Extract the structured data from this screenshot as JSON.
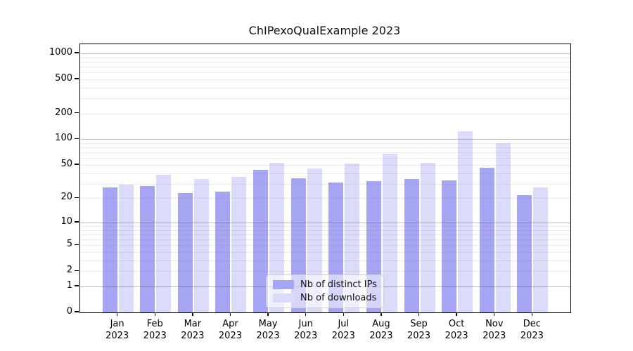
{
  "chart_data": {
    "type": "bar",
    "title": "ChIPexoQualExample 2023",
    "categories": [
      "Jan",
      "Feb",
      "Mar",
      "Apr",
      "May",
      "Jun",
      "Jul",
      "Aug",
      "Sep",
      "Oct",
      "Nov",
      "Dec"
    ],
    "category_year": "2023",
    "series": [
      {
        "name": "Nb of distinct IPs",
        "color": "#a5a5f3",
        "values": [
          27,
          28,
          23,
          24,
          44,
          35,
          31,
          32,
          34,
          33,
          46,
          22
        ]
      },
      {
        "name": "Nb of downloads",
        "color": "#dbdbfa",
        "values": [
          29,
          38,
          34,
          36,
          53,
          45,
          52,
          68,
          53,
          125,
          90,
          27
        ]
      }
    ],
    "xlabel": "",
    "ylabel": "",
    "y_axis": {
      "scale": "log1p",
      "tick_labels": [
        1000,
        500,
        200,
        100,
        50,
        20,
        10,
        5,
        2,
        1,
        0
      ],
      "major_gridlines": [
        1,
        10,
        100,
        1000
      ],
      "minor_gridlines": [
        2,
        3,
        4,
        5,
        6,
        7,
        8,
        9,
        20,
        30,
        40,
        50,
        60,
        70,
        80,
        90,
        200,
        300,
        400,
        500,
        600,
        700,
        800,
        900
      ],
      "ylim": [
        0,
        1275
      ]
    },
    "legend_position": "bottom-center",
    "grid": true
  }
}
